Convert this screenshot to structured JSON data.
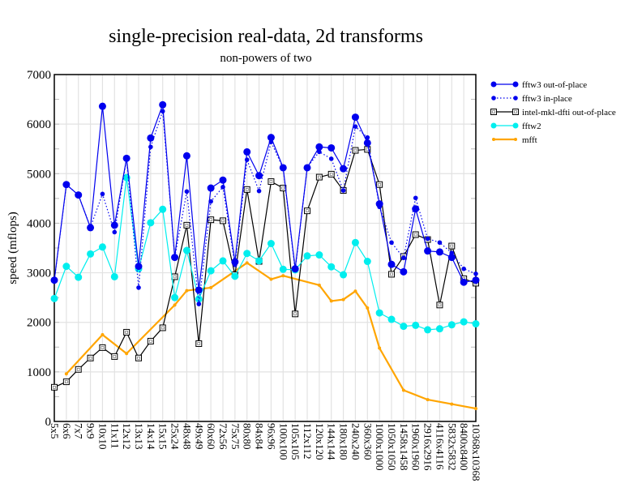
{
  "chart_data": {
    "type": "line",
    "title": "single-precision real-data, 2d transforms",
    "subtitle": "non-powers of two",
    "xlabel": "",
    "ylabel": "speed (mflops)",
    "ylim": [
      0,
      7000
    ],
    "yticks": [
      0,
      1000,
      2000,
      3000,
      4000,
      5000,
      6000,
      7000
    ],
    "grid": true,
    "legend_position": "top-right outside",
    "categories": [
      "5x5",
      "6x6",
      "7x7",
      "9x9",
      "10x10",
      "11x11",
      "12x12",
      "13x13",
      "14x14",
      "15x15",
      "25x24",
      "48x48",
      "49x49",
      "60x60",
      "72x56",
      "75x75",
      "80x80",
      "84x84",
      "96x96",
      "100x100",
      "105x105",
      "112x112",
      "120x120",
      "144x144",
      "180x180",
      "240x240",
      "360x360",
      "1000x1000",
      "1050x1050",
      "1458x1458",
      "1960x1960",
      "2916x2916",
      "4116x4116",
      "5832x5832",
      "8400x8400",
      "10368x10368"
    ],
    "series": [
      {
        "name": "fftw3 out-of-place",
        "color": "#0000ee",
        "marker": "circle-large",
        "line": "solid",
        "values": [
          2850,
          4780,
          4570,
          3910,
          6360,
          3960,
          5310,
          3130,
          5720,
          6390,
          3310,
          5360,
          2650,
          4710,
          4870,
          3220,
          5440,
          4960,
          5730,
          5120,
          3080,
          5120,
          5540,
          5520,
          5100,
          6140,
          5620,
          4390,
          3170,
          3020,
          4290,
          3440,
          3420,
          3310,
          2810,
          2850
        ]
      },
      {
        "name": "fftw3 in-place",
        "color": "#0000ee",
        "marker": "circle-small",
        "line": "dotted",
        "values": [
          2850,
          4780,
          4570,
          3920,
          4590,
          3820,
          5300,
          2700,
          5540,
          6260,
          3310,
          4640,
          2370,
          4440,
          4730,
          3160,
          5280,
          4650,
          5640,
          5110,
          3050,
          5130,
          5440,
          5300,
          4660,
          5950,
          5730,
          4330,
          3610,
          3300,
          4510,
          3690,
          3610,
          3400,
          3080,
          2980
        ]
      },
      {
        "name": "intel-mkl-dfti out-of-place",
        "color": "#000000",
        "marker": "square-open",
        "line": "solid",
        "values": [
          690,
          800,
          1050,
          1280,
          1490,
          1310,
          1800,
          1280,
          1620,
          1890,
          2920,
          3960,
          1570,
          4070,
          4050,
          2960,
          4680,
          3230,
          4840,
          4710,
          2170,
          4250,
          4930,
          4990,
          4660,
          5470,
          5490,
          4780,
          2970,
          3330,
          3770,
          3670,
          2350,
          3540,
          2880,
          2790
        ]
      },
      {
        "name": "fftw2",
        "color": "#00eeee",
        "marker": "circle-large",
        "line": "solid",
        "values": [
          2480,
          3130,
          2910,
          3380,
          3520,
          2920,
          4920,
          3080,
          4010,
          4280,
          2500,
          3450,
          2470,
          3040,
          3240,
          2930,
          3390,
          3240,
          3590,
          3070,
          3060,
          3340,
          3360,
          3120,
          2960,
          3610,
          3230,
          2190,
          2060,
          1920,
          1940,
          1850,
          1870,
          1950,
          2010,
          1970
        ]
      },
      {
        "name": "mfft",
        "color": "#ffa500",
        "marker": "dot",
        "line": "thick",
        "values": [
          null,
          960,
          null,
          null,
          1750,
          null,
          1370,
          null,
          null,
          null,
          2350,
          2640,
          null,
          2700,
          null,
          null,
          3200,
          null,
          2870,
          2940,
          null,
          null,
          2750,
          2430,
          2460,
          2630,
          2290,
          1480,
          null,
          630,
          null,
          440,
          null,
          350,
          null,
          260
        ]
      }
    ]
  }
}
